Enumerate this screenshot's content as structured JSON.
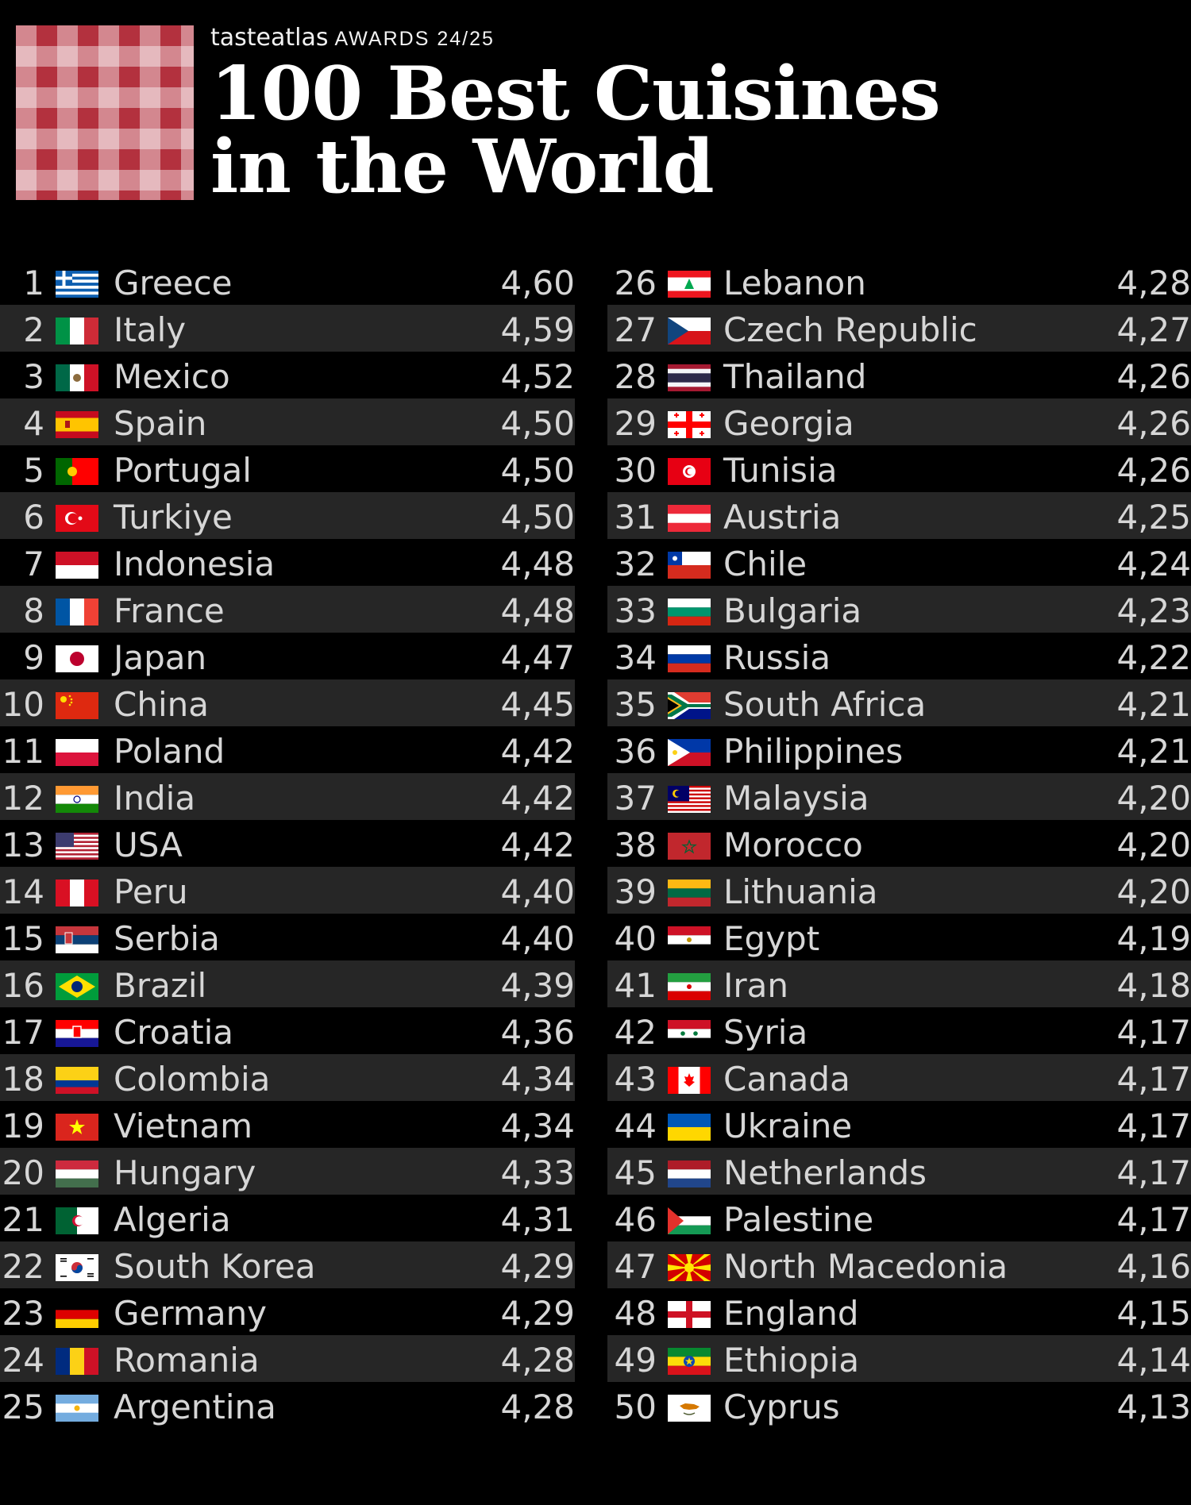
{
  "header": {
    "brand": "tasteatlas",
    "awards": "AWARDS 24/25",
    "title_line1": "100 Best Cuisines",
    "title_line2": "in the World"
  },
  "left": [
    {
      "rank": "1",
      "country": "Greece",
      "score": "4,60",
      "flag": "greece-flag-icon"
    },
    {
      "rank": "2",
      "country": "Italy",
      "score": "4,59",
      "flag": "italy-flag-icon"
    },
    {
      "rank": "3",
      "country": "Mexico",
      "score": "4,52",
      "flag": "mexico-flag-icon"
    },
    {
      "rank": "4",
      "country": "Spain",
      "score": "4,50",
      "flag": "spain-flag-icon"
    },
    {
      "rank": "5",
      "country": "Portugal",
      "score": "4,50",
      "flag": "portugal-flag-icon"
    },
    {
      "rank": "6",
      "country": "Turkiye",
      "score": "4,50",
      "flag": "turkiye-flag-icon"
    },
    {
      "rank": "7",
      "country": "Indonesia",
      "score": "4,48",
      "flag": "indonesia-flag-icon"
    },
    {
      "rank": "8",
      "country": "France",
      "score": "4,48",
      "flag": "france-flag-icon"
    },
    {
      "rank": "9",
      "country": "Japan",
      "score": "4,47",
      "flag": "japan-flag-icon"
    },
    {
      "rank": "10",
      "country": "China",
      "score": "4,45",
      "flag": "china-flag-icon"
    },
    {
      "rank": "11",
      "country": "Poland",
      "score": "4,42",
      "flag": "poland-flag-icon"
    },
    {
      "rank": "12",
      "country": "India",
      "score": "4,42",
      "flag": "india-flag-icon"
    },
    {
      "rank": "13",
      "country": "USA",
      "score": "4,42",
      "flag": "usa-flag-icon"
    },
    {
      "rank": "14",
      "country": "Peru",
      "score": "4,40",
      "flag": "peru-flag-icon"
    },
    {
      "rank": "15",
      "country": "Serbia",
      "score": "4,40",
      "flag": "serbia-flag-icon"
    },
    {
      "rank": "16",
      "country": "Brazil",
      "score": "4,39",
      "flag": "brazil-flag-icon"
    },
    {
      "rank": "17",
      "country": "Croatia",
      "score": "4,36",
      "flag": "croatia-flag-icon"
    },
    {
      "rank": "18",
      "country": "Colombia",
      "score": "4,34",
      "flag": "colombia-flag-icon"
    },
    {
      "rank": "19",
      "country": "Vietnam",
      "score": "4,34",
      "flag": "vietnam-flag-icon"
    },
    {
      "rank": "20",
      "country": "Hungary",
      "score": "4,33",
      "flag": "hungary-flag-icon"
    },
    {
      "rank": "21",
      "country": "Algeria",
      "score": "4,31",
      "flag": "algeria-flag-icon"
    },
    {
      "rank": "22",
      "country": "South Korea",
      "score": "4,29",
      "flag": "south-korea-flag-icon"
    },
    {
      "rank": "23",
      "country": "Germany",
      "score": "4,29",
      "flag": "germany-flag-icon"
    },
    {
      "rank": "24",
      "country": "Romania",
      "score": "4,28",
      "flag": "romania-flag-icon"
    },
    {
      "rank": "25",
      "country": "Argentina",
      "score": "4,28",
      "flag": "argentina-flag-icon"
    }
  ],
  "right": [
    {
      "rank": "26",
      "country": "Lebanon",
      "score": "4,28",
      "flag": "lebanon-flag-icon"
    },
    {
      "rank": "27",
      "country": "Czech Republic",
      "score": "4,27",
      "flag": "czech-republic-flag-icon"
    },
    {
      "rank": "28",
      "country": "Thailand",
      "score": "4,26",
      "flag": "thailand-flag-icon"
    },
    {
      "rank": "29",
      "country": "Georgia",
      "score": "4,26",
      "flag": "georgia-flag-icon"
    },
    {
      "rank": "30",
      "country": "Tunisia",
      "score": "4,26",
      "flag": "tunisia-flag-icon"
    },
    {
      "rank": "31",
      "country": "Austria",
      "score": "4,25",
      "flag": "austria-flag-icon"
    },
    {
      "rank": "32",
      "country": "Chile",
      "score": "4,24",
      "flag": "chile-flag-icon"
    },
    {
      "rank": "33",
      "country": "Bulgaria",
      "score": "4,23",
      "flag": "bulgaria-flag-icon"
    },
    {
      "rank": "34",
      "country": "Russia",
      "score": "4,22",
      "flag": "russia-flag-icon"
    },
    {
      "rank": "35",
      "country": "South Africa",
      "score": "4,21",
      "flag": "south-africa-flag-icon"
    },
    {
      "rank": "36",
      "country": "Philippines",
      "score": "4,21",
      "flag": "philippines-flag-icon"
    },
    {
      "rank": "37",
      "country": "Malaysia",
      "score": "4,20",
      "flag": "malaysia-flag-icon"
    },
    {
      "rank": "38",
      "country": "Morocco",
      "score": "4,20",
      "flag": "morocco-flag-icon"
    },
    {
      "rank": "39",
      "country": "Lithuania",
      "score": "4,20",
      "flag": "lithuania-flag-icon"
    },
    {
      "rank": "40",
      "country": "Egypt",
      "score": "4,19",
      "flag": "egypt-flag-icon"
    },
    {
      "rank": "41",
      "country": "Iran",
      "score": "4,18",
      "flag": "iran-flag-icon"
    },
    {
      "rank": "42",
      "country": "Syria",
      "score": "4,17",
      "flag": "syria-flag-icon"
    },
    {
      "rank": "43",
      "country": "Canada",
      "score": "4,17",
      "flag": "canada-flag-icon"
    },
    {
      "rank": "44",
      "country": "Ukraine",
      "score": "4,17",
      "flag": "ukraine-flag-icon"
    },
    {
      "rank": "45",
      "country": "Netherlands",
      "score": "4,17",
      "flag": "netherlands-flag-icon"
    },
    {
      "rank": "46",
      "country": "Palestine",
      "score": "4,17",
      "flag": "palestine-flag-icon"
    },
    {
      "rank": "47",
      "country": "North Macedonia",
      "score": "4,16",
      "flag": "north-macedonia-flag-icon"
    },
    {
      "rank": "48",
      "country": "England",
      "score": "4,15",
      "flag": "england-flag-icon"
    },
    {
      "rank": "49",
      "country": "Ethiopia",
      "score": "4,14",
      "flag": "ethiopia-flag-icon"
    },
    {
      "rank": "50",
      "country": "Cyprus",
      "score": "4,13",
      "flag": "cyprus-flag-icon"
    }
  ]
}
